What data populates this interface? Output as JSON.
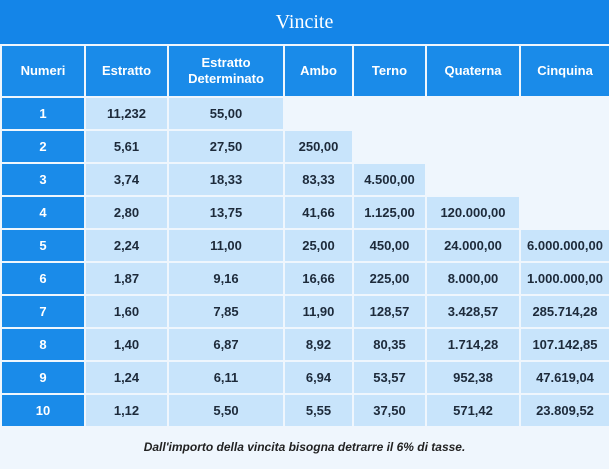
{
  "title": "Vincite",
  "headers": {
    "numeri": "Numeri",
    "estratto": "Estratto",
    "estratto_det_1": "Estratto",
    "estratto_det_2": "Determinato",
    "ambo": "Ambo",
    "terno": "Terno",
    "quaterna": "Quaterna",
    "cinquina": "Cinquina"
  },
  "rows": [
    {
      "n": "1",
      "estratto": "11,232",
      "estratto_det": "55,00",
      "ambo": "",
      "terno": "",
      "quaterna": "",
      "cinquina": ""
    },
    {
      "n": "2",
      "estratto": "5,61",
      "estratto_det": "27,50",
      "ambo": "250,00",
      "terno": "",
      "quaterna": "",
      "cinquina": ""
    },
    {
      "n": "3",
      "estratto": "3,74",
      "estratto_det": "18,33",
      "ambo": "83,33",
      "terno": "4.500,00",
      "quaterna": "",
      "cinquina": ""
    },
    {
      "n": "4",
      "estratto": "2,80",
      "estratto_det": "13,75",
      "ambo": "41,66",
      "terno": "1.125,00",
      "quaterna": "120.000,00",
      "cinquina": ""
    },
    {
      "n": "5",
      "estratto": "2,24",
      "estratto_det": "11,00",
      "ambo": "25,00",
      "terno": "450,00",
      "quaterna": "24.000,00",
      "cinquina": "6.000.000,00"
    },
    {
      "n": "6",
      "estratto": "1,87",
      "estratto_det": "9,16",
      "ambo": "16,66",
      "terno": "225,00",
      "quaterna": "8.000,00",
      "cinquina": "1.000.000,00"
    },
    {
      "n": "7",
      "estratto": "1,60",
      "estratto_det": "7,85",
      "ambo": "11,90",
      "terno": "128,57",
      "quaterna": "3.428,57",
      "cinquina": "285.714,28"
    },
    {
      "n": "8",
      "estratto": "1,40",
      "estratto_det": "6,87",
      "ambo": "8,92",
      "terno": "80,35",
      "quaterna": "1.714,28",
      "cinquina": "107.142,85"
    },
    {
      "n": "9",
      "estratto": "1,24",
      "estratto_det": "6,11",
      "ambo": "6,94",
      "terno": "53,57",
      "quaterna": "952,38",
      "cinquina": "47.619,04"
    },
    {
      "n": "10",
      "estratto": "1,12",
      "estratto_det": "5,50",
      "ambo": "5,55",
      "terno": "37,50",
      "quaterna": "571,42",
      "cinquina": "23.809,52"
    }
  ],
  "footer_note": "Dall'importo della vincita bisogna detrarre il 6% di tasse.",
  "colors": {
    "header_blue": "#1a8be9",
    "cell_light_blue": "#c8e4fb",
    "page_background": "#eff6fd"
  }
}
